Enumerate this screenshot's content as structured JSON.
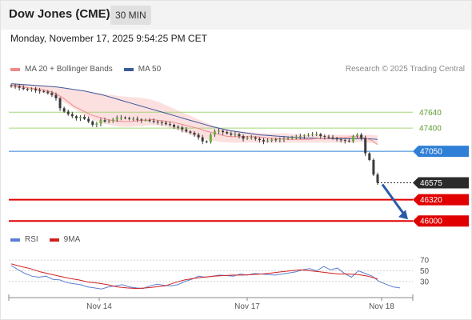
{
  "header": {
    "instrument": "Dow Jones (CME)",
    "timeframe": "30 MIN",
    "datetime": "Monday, November 17, 2025 9:54:25 PM CET"
  },
  "legend": {
    "ma20_bb_label": "MA 20 + Bollinger Bands",
    "ma50_label": "MA 50",
    "copyright": "Research © 2025 Trading Central"
  },
  "rsi_legend": {
    "rsi_label": "RSI",
    "ma_label": "9MA"
  },
  "colors": {
    "ma20": "#f08a8a",
    "bollinger_fill": "#fbdada",
    "ma50": "#3d5a99",
    "resistance": "#a6d67a",
    "pivot": "#2f7fd6",
    "support": "#e00000",
    "current": "#2b2b2b",
    "candle": "#3a3a3a",
    "candle_up": "#6fae3f",
    "rsi": "#5b7fd1",
    "rsi_ma": "#d22020",
    "arrow": "#2a5aa8"
  },
  "chart_data": [
    {
      "type": "candlestick",
      "title": "",
      "x_ticks": [
        "Nov 14",
        "Nov 17",
        "Nov 18"
      ],
      "ylim": [
        45930,
        48150
      ],
      "levels": [
        {
          "value": 47640,
          "label": "47640",
          "kind": "resistance"
        },
        {
          "value": 47400,
          "label": "47400",
          "kind": "resistance"
        },
        {
          "value": 47050,
          "label": "47050",
          "kind": "pivot"
        },
        {
          "value": 46575,
          "label": "46575",
          "kind": "current"
        },
        {
          "value": 46320,
          "label": "46320",
          "kind": "support"
        },
        {
          "value": 46000,
          "label": "46000",
          "kind": "support"
        }
      ],
      "close": [
        48040,
        48030,
        48010,
        47990,
        47980,
        47990,
        47970,
        47960,
        47950,
        47930,
        47900,
        47850,
        47700,
        47650,
        47610,
        47580,
        47550,
        47570,
        47540,
        47500,
        47450,
        47470,
        47520,
        47500,
        47510,
        47530,
        47560,
        47560,
        47550,
        47540,
        47540,
        47530,
        47520,
        47520,
        47510,
        47500,
        47490,
        47480,
        47460,
        47450,
        47420,
        47410,
        47380,
        47350,
        47330,
        47300,
        47260,
        47200,
        47190,
        47300,
        47350,
        47360,
        47340,
        47320,
        47300,
        47310,
        47280,
        47240,
        47250,
        47260,
        47240,
        47220,
        47200,
        47210,
        47230,
        47220,
        47230,
        47240,
        47250,
        47260,
        47270,
        47280,
        47290,
        47300,
        47310,
        47310,
        47280,
        47270,
        47260,
        47250,
        47230,
        47220,
        47210,
        47200,
        47280,
        47300,
        47250,
        47020,
        46920,
        46700,
        46575
      ],
      "ma20": [
        48050,
        48040,
        48030,
        48010,
        48000,
        47990,
        47980,
        47960,
        47940,
        47900,
        47850,
        47790,
        47730,
        47690,
        47650,
        47610,
        47580,
        47560,
        47540,
        47520,
        47510,
        47500,
        47500,
        47500,
        47510,
        47520,
        47520,
        47530,
        47520,
        47510,
        47500,
        47490,
        47470,
        47450,
        47430,
        47410,
        47390,
        47360,
        47340,
        47320,
        47300,
        47280,
        47270,
        47270,
        47270,
        47270,
        47270,
        47270,
        47260,
        47250,
        47250,
        47240,
        47240,
        47230,
        47230,
        47230,
        47230,
        47230,
        47240,
        47240,
        47240,
        47250,
        47250,
        47260,
        47260,
        47270,
        47270,
        47260,
        47240,
        47210,
        47150
      ],
      "ma50": [
        48070,
        48060,
        48050,
        48040,
        48030,
        48020,
        48000,
        47980,
        47960,
        47930,
        47900,
        47860,
        47820,
        47780,
        47740,
        47700,
        47660,
        47620,
        47580,
        47540,
        47500,
        47460,
        47420,
        47390,
        47360,
        47340,
        47320,
        47300,
        47290,
        47280,
        47270,
        47260,
        47250,
        47250,
        47240,
        47240,
        47240,
        47240,
        47240,
        47240,
        47230
      ],
      "bollinger_upper": [
        48080,
        48070,
        48060,
        48050,
        48040,
        48020,
        48000,
        47980,
        47960,
        47940,
        47920,
        47900,
        47880,
        47870,
        47860,
        47840,
        47800,
        47740,
        47680,
        47620,
        47560,
        47500,
        47440,
        47400,
        47370,
        47350,
        47340,
        47330,
        47320,
        47320,
        47320,
        47310,
        47300,
        47300,
        47300,
        47300,
        47300,
        47300,
        47300,
        47300,
        47290
      ],
      "bollinger_lower": [
        48010,
        48000,
        47980,
        47950,
        47910,
        47850,
        47770,
        47680,
        47590,
        47520,
        47470,
        47440,
        47420,
        47420,
        47430,
        47440,
        47440,
        47420,
        47380,
        47330,
        47280,
        47240,
        47210,
        47190,
        47180,
        47180,
        47180,
        47180,
        47180,
        47180,
        47180,
        47180,
        47180,
        47180,
        47180,
        47180,
        47180,
        47180,
        47190,
        47180,
        47160
      ],
      "projection": {
        "from": 46575,
        "to": 46000
      }
    },
    {
      "type": "line",
      "title": "",
      "ylim": [
        0,
        100
      ],
      "y_ticks": [
        "70",
        "50",
        "30"
      ],
      "series": [
        {
          "name": "RSI",
          "values": [
            60,
            52,
            45,
            40,
            38,
            40,
            34,
            33,
            28,
            26,
            24,
            20,
            18,
            16,
            20,
            22,
            24,
            20,
            18,
            17,
            22,
            25,
            23,
            22,
            24,
            30,
            34,
            40,
            38,
            40,
            42,
            41,
            40,
            44,
            42,
            45,
            44,
            43,
            42,
            44,
            46,
            48,
            52,
            54,
            50,
            58,
            52,
            55,
            45,
            38,
            50,
            45,
            40,
            30,
            25,
            20,
            18
          ]
        },
        {
          "name": "9MA",
          "values": [
            63,
            58,
            54,
            48,
            44,
            40,
            36,
            33,
            29,
            27,
            24,
            20,
            18,
            17,
            18,
            20,
            22,
            28,
            33,
            36,
            38,
            40,
            41,
            42,
            42,
            43,
            44,
            46,
            48,
            50,
            52,
            50,
            48,
            46,
            44,
            44,
            43,
            40,
            35
          ]
        }
      ]
    }
  ]
}
